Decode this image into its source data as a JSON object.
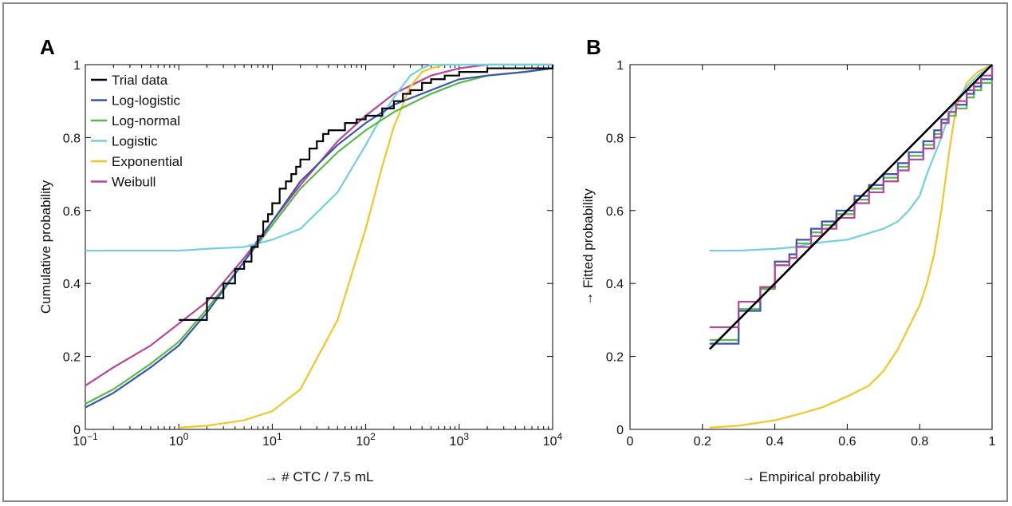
{
  "panels": {
    "A": {
      "letter": "A"
    },
    "B": {
      "letter": "B"
    }
  },
  "chart_data": [
    {
      "type": "line",
      "panel": "A",
      "xlabel": "→ # CTC / 7.5 mL",
      "ylabel": "Cumulative probability",
      "xscale": "log",
      "xlim": [
        0.1,
        10000
      ],
      "ylim": [
        0,
        1
      ],
      "xticks": [
        0.1,
        1,
        10,
        100,
        1000,
        10000
      ],
      "xtick_exponents": [
        "−1",
        "0",
        "1",
        "2",
        "3",
        "4"
      ],
      "xtick_base": "10",
      "yticks": [
        "0",
        "0.2",
        "0.4",
        "0.6",
        "0.8",
        "1"
      ],
      "legend_position": "top-left",
      "grid": false,
      "series": [
        {
          "name": "Trial data",
          "color": "#000000",
          "step": true,
          "x": [
            1,
            2,
            3,
            4,
            5,
            6,
            7,
            8,
            9,
            10,
            12,
            14,
            16,
            18,
            20,
            25,
            30,
            35,
            40,
            60,
            80,
            100,
            150,
            200,
            250,
            300,
            400,
            500,
            700,
            1000,
            2000,
            10000
          ],
          "y": [
            0.3,
            0.36,
            0.4,
            0.44,
            0.46,
            0.5,
            0.53,
            0.57,
            0.59,
            0.62,
            0.66,
            0.68,
            0.7,
            0.72,
            0.74,
            0.77,
            0.79,
            0.81,
            0.82,
            0.84,
            0.85,
            0.86,
            0.88,
            0.9,
            0.92,
            0.93,
            0.95,
            0.96,
            0.97,
            0.98,
            0.99,
            1.0
          ]
        },
        {
          "name": "Log-logistic",
          "color": "#3a55b0",
          "x": [
            0.1,
            0.2,
            0.5,
            1,
            2,
            5,
            10,
            20,
            50,
            100,
            200,
            500,
            1000,
            2000,
            5000,
            10000
          ],
          "y": [
            0.06,
            0.1,
            0.17,
            0.23,
            0.32,
            0.46,
            0.57,
            0.68,
            0.78,
            0.84,
            0.89,
            0.93,
            0.96,
            0.97,
            0.98,
            0.99
          ]
        },
        {
          "name": "Log-normal",
          "color": "#55bb44",
          "x": [
            0.1,
            0.2,
            0.5,
            1,
            2,
            5,
            10,
            20,
            50,
            100,
            200,
            500,
            1000,
            2000,
            5000,
            10000
          ],
          "y": [
            0.07,
            0.11,
            0.18,
            0.24,
            0.33,
            0.46,
            0.56,
            0.66,
            0.76,
            0.82,
            0.87,
            0.92,
            0.95,
            0.97,
            0.98,
            0.99
          ]
        },
        {
          "name": "Logistic",
          "color": "#6fd0e2",
          "x": [
            0.1,
            0.5,
            1,
            2,
            5,
            10,
            20,
            50,
            100,
            150,
            200,
            300,
            400,
            500,
            10000
          ],
          "y": [
            0.49,
            0.49,
            0.49,
            0.495,
            0.5,
            0.52,
            0.55,
            0.65,
            0.78,
            0.86,
            0.91,
            0.97,
            0.99,
            1.0,
            1.0
          ]
        },
        {
          "name": "Exponential",
          "color": "#f5c524",
          "x": [
            1,
            2,
            5,
            10,
            20,
            50,
            100,
            150,
            200,
            300,
            400,
            500,
            700,
            1000,
            10000
          ],
          "y": [
            0.005,
            0.01,
            0.025,
            0.05,
            0.11,
            0.3,
            0.55,
            0.72,
            0.83,
            0.94,
            0.98,
            0.99,
            1.0,
            1.0,
            1.0
          ]
        },
        {
          "name": "Weibull",
          "color": "#b8449c",
          "x": [
            0.1,
            0.2,
            0.5,
            1,
            2,
            5,
            10,
            20,
            50,
            100,
            200,
            500,
            1000,
            2000,
            5000,
            10000
          ],
          "y": [
            0.12,
            0.17,
            0.23,
            0.29,
            0.35,
            0.47,
            0.57,
            0.67,
            0.79,
            0.86,
            0.92,
            0.97,
            0.99,
            1.0,
            1.0,
            1.0
          ]
        }
      ]
    },
    {
      "type": "line",
      "panel": "B",
      "xlabel": "→ Empirical probability",
      "ylabel": "→ Fitted probability",
      "xlim": [
        0,
        1
      ],
      "ylim": [
        0,
        1
      ],
      "xticks": [
        "0",
        "0.2",
        "0.4",
        "0.6",
        "0.8",
        "1"
      ],
      "yticks": [
        "0",
        "0.2",
        "0.4",
        "0.6",
        "0.8",
        "1"
      ],
      "grid": false,
      "series": [
        {
          "name": "",
          "color": "#000000",
          "x": [
            0.22,
            1.0
          ],
          "y": [
            0.22,
            1.0
          ]
        },
        {
          "name": "",
          "color": "#3a55b0",
          "step": true,
          "x": [
            0.22,
            0.3,
            0.36,
            0.4,
            0.44,
            0.46,
            0.5,
            0.53,
            0.57,
            0.62,
            0.66,
            0.7,
            0.74,
            0.77,
            0.81,
            0.84,
            0.86,
            0.88,
            0.9,
            0.93,
            0.95,
            0.97,
            1.0
          ],
          "y": [
            0.235,
            0.325,
            0.39,
            0.46,
            0.48,
            0.52,
            0.55,
            0.57,
            0.6,
            0.64,
            0.67,
            0.7,
            0.73,
            0.76,
            0.79,
            0.82,
            0.85,
            0.87,
            0.89,
            0.92,
            0.94,
            0.96,
            1.0
          ]
        },
        {
          "name": "",
          "color": "#55bb44",
          "step": true,
          "x": [
            0.22,
            0.3,
            0.36,
            0.4,
            0.44,
            0.46,
            0.5,
            0.53,
            0.57,
            0.62,
            0.66,
            0.7,
            0.74,
            0.77,
            0.81,
            0.84,
            0.86,
            0.88,
            0.9,
            0.93,
            0.95,
            0.97,
            1.0
          ],
          "y": [
            0.245,
            0.33,
            0.385,
            0.45,
            0.47,
            0.51,
            0.54,
            0.56,
            0.59,
            0.63,
            0.66,
            0.69,
            0.72,
            0.75,
            0.78,
            0.81,
            0.84,
            0.86,
            0.88,
            0.91,
            0.93,
            0.95,
            0.98
          ]
        },
        {
          "name": "",
          "color": "#6fd0e2",
          "x": [
            0.22,
            0.3,
            0.4,
            0.46,
            0.5,
            0.6,
            0.7,
            0.74,
            0.77,
            0.8,
            0.82,
            0.84,
            0.86,
            0.88,
            0.9,
            0.93,
            0.96,
            1.0
          ],
          "y": [
            0.49,
            0.49,
            0.495,
            0.5,
            0.51,
            0.52,
            0.55,
            0.57,
            0.6,
            0.64,
            0.7,
            0.75,
            0.8,
            0.86,
            0.9,
            0.94,
            0.97,
            1.0
          ]
        },
        {
          "name": "",
          "color": "#f5c524",
          "x": [
            0.22,
            0.3,
            0.4,
            0.46,
            0.53,
            0.6,
            0.66,
            0.7,
            0.74,
            0.77,
            0.8,
            0.82,
            0.84,
            0.86,
            0.88,
            0.9,
            0.93,
            0.96,
            1.0
          ],
          "y": [
            0.005,
            0.01,
            0.025,
            0.04,
            0.06,
            0.09,
            0.12,
            0.16,
            0.22,
            0.28,
            0.34,
            0.4,
            0.48,
            0.6,
            0.75,
            0.88,
            0.95,
            0.98,
            1.0
          ]
        },
        {
          "name": "",
          "color": "#b8449c",
          "step": true,
          "x": [
            0.22,
            0.3,
            0.36,
            0.4,
            0.44,
            0.46,
            0.5,
            0.53,
            0.57,
            0.62,
            0.66,
            0.7,
            0.74,
            0.77,
            0.81,
            0.84,
            0.86,
            0.88,
            0.9,
            0.93,
            0.95,
            0.97,
            1.0
          ],
          "y": [
            0.28,
            0.35,
            0.39,
            0.45,
            0.47,
            0.5,
            0.53,
            0.55,
            0.58,
            0.62,
            0.65,
            0.68,
            0.71,
            0.74,
            0.77,
            0.8,
            0.84,
            0.87,
            0.9,
            0.93,
            0.95,
            0.97,
            1.0
          ]
        }
      ]
    }
  ]
}
